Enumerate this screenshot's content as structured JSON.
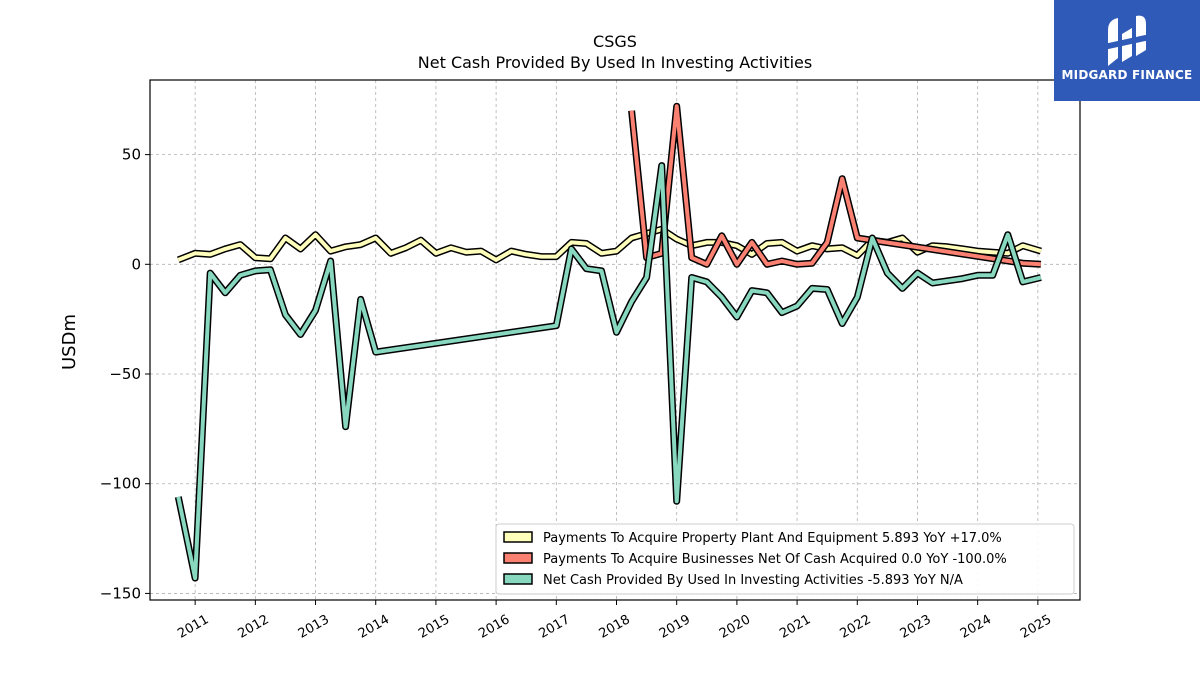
{
  "chart_data": {
    "type": "line",
    "title": "CSGS",
    "subtitle": "Net Cash Provided By Used In Investing Activities",
    "xlabel": "",
    "ylabel": "USDm",
    "xlim": [
      2010.25,
      2025.7
    ],
    "ylim": [
      -153,
      84
    ],
    "x_ticks": [
      "2011",
      "2012",
      "2013",
      "2014",
      "2015",
      "2016",
      "2017",
      "2018",
      "2019",
      "2020",
      "2021",
      "2022",
      "2023",
      "2024",
      "2025"
    ],
    "y_ticks": [
      50,
      0,
      -50,
      -100,
      -150
    ],
    "y_tick_labels": [
      "50",
      "0",
      "−50",
      "−100",
      "−150"
    ],
    "grid": true,
    "legend_position": "lower-right",
    "series": [
      {
        "name": "Payments To Acquire Property Plant And Equipment  5.893 YoY +17.0%",
        "color": "#ffffbb",
        "points": [
          [
            2010.72,
            2.0
          ],
          [
            2011.0,
            5.0
          ],
          [
            2011.25,
            4.5
          ],
          [
            2011.5,
            7.0
          ],
          [
            2011.75,
            9.0
          ],
          [
            2012.0,
            3.0
          ],
          [
            2012.25,
            2.5
          ],
          [
            2012.5,
            12.0
          ],
          [
            2012.75,
            7.0
          ],
          [
            2013.0,
            13.5
          ],
          [
            2013.25,
            6.0
          ],
          [
            2013.5,
            8.0
          ],
          [
            2013.75,
            9.0
          ],
          [
            2014.0,
            12.0
          ],
          [
            2014.25,
            5.0
          ],
          [
            2014.5,
            7.5
          ],
          [
            2014.75,
            11.0
          ],
          [
            2015.0,
            5.0
          ],
          [
            2015.25,
            7.5
          ],
          [
            2015.5,
            5.5
          ],
          [
            2015.75,
            6.0
          ],
          [
            2016.0,
            2.0
          ],
          [
            2016.25,
            6.0
          ],
          [
            2016.5,
            4.5
          ],
          [
            2016.75,
            3.5
          ],
          [
            2017.0,
            3.5
          ],
          [
            2017.25,
            10.0
          ],
          [
            2017.5,
            9.5
          ],
          [
            2017.75,
            5.0
          ],
          [
            2018.0,
            6.0
          ],
          [
            2018.25,
            12.0
          ],
          [
            2018.5,
            14.0
          ],
          [
            2018.75,
            16.0
          ],
          [
            2019.0,
            11.5
          ],
          [
            2019.25,
            8.5
          ],
          [
            2019.5,
            10.0
          ],
          [
            2019.75,
            10.0
          ],
          [
            2020.0,
            8.5
          ],
          [
            2020.25,
            4.5
          ],
          [
            2020.5,
            9.5
          ],
          [
            2020.75,
            10.0
          ],
          [
            2021.0,
            6.0
          ],
          [
            2021.25,
            8.5
          ],
          [
            2021.5,
            7.0
          ],
          [
            2021.75,
            7.5
          ],
          [
            2022.0,
            4.0
          ],
          [
            2022.25,
            11.0
          ],
          [
            2022.5,
            10.0
          ],
          [
            2022.75,
            12.0
          ],
          [
            2023.0,
            5.5
          ],
          [
            2023.25,
            8.5
          ],
          [
            2023.5,
            8.0
          ],
          [
            2023.75,
            7.0
          ],
          [
            2024.0,
            6.0
          ],
          [
            2024.25,
            5.5
          ],
          [
            2024.5,
            5.0
          ],
          [
            2024.75,
            8.5
          ],
          [
            2025.05,
            6.0
          ]
        ]
      },
      {
        "name": "Payments To Acquire Businesses Net Of Cash Acquired  0.0 YoY -100.0%",
        "color": "#fa8072",
        "points": [
          [
            2018.25,
            70.0
          ],
          [
            2018.5,
            3.0
          ],
          [
            2018.75,
            5.0
          ],
          [
            2019.0,
            72.0
          ],
          [
            2019.25,
            3.0
          ],
          [
            2019.5,
            0.0
          ],
          [
            2019.75,
            13.0
          ],
          [
            2020.0,
            0.0
          ],
          [
            2020.25,
            10.0
          ],
          [
            2020.5,
            0.0
          ],
          [
            2020.75,
            1.5
          ],
          [
            2021.0,
            0.0
          ],
          [
            2021.25,
            0.5
          ],
          [
            2021.5,
            10.0
          ],
          [
            2021.75,
            39.0
          ],
          [
            2022.0,
            12.0
          ],
          [
            2024.75,
            0.5
          ],
          [
            2025.05,
            0.0
          ]
        ]
      },
      {
        "name": "Net Cash Provided By Used In Investing Activities  -5.893 YoY N/A",
        "color": "#88d8c0",
        "points": [
          [
            2010.72,
            -106.0
          ],
          [
            2011.0,
            -143.0
          ],
          [
            2011.25,
            -4.0
          ],
          [
            2011.5,
            -13.0
          ],
          [
            2011.75,
            -5.0
          ],
          [
            2012.0,
            -3.0
          ],
          [
            2012.25,
            -2.5
          ],
          [
            2012.5,
            -23.0
          ],
          [
            2012.75,
            -32.0
          ],
          [
            2013.0,
            -21.0
          ],
          [
            2013.25,
            1.5
          ],
          [
            2013.5,
            -74.0
          ],
          [
            2013.75,
            -16.0
          ],
          [
            2014.0,
            -40.0
          ],
          [
            2017.0,
            -28.0
          ],
          [
            2017.25,
            7.0
          ],
          [
            2017.5,
            -2.0
          ],
          [
            2017.75,
            -3.0
          ],
          [
            2018.0,
            -31.0
          ],
          [
            2018.25,
            -17.0
          ],
          [
            2018.5,
            -6.0
          ],
          [
            2018.75,
            45.0
          ],
          [
            2019.0,
            -108.0
          ],
          [
            2019.25,
            -6.0
          ],
          [
            2019.5,
            -8.0
          ],
          [
            2019.75,
            -15.0
          ],
          [
            2020.0,
            -24.0
          ],
          [
            2020.25,
            -12.0
          ],
          [
            2020.5,
            -13.0
          ],
          [
            2020.75,
            -22.0
          ],
          [
            2021.0,
            -19.0
          ],
          [
            2021.25,
            -11.0
          ],
          [
            2021.5,
            -11.5
          ],
          [
            2021.75,
            -27.0
          ],
          [
            2022.0,
            -15.0
          ],
          [
            2022.25,
            12.0
          ],
          [
            2022.5,
            -4.0
          ],
          [
            2022.75,
            -11.0
          ],
          [
            2023.0,
            -4.0
          ],
          [
            2023.25,
            -8.5
          ],
          [
            2023.5,
            -7.5
          ],
          [
            2023.75,
            -6.5
          ],
          [
            2024.0,
            -5.0
          ],
          [
            2024.25,
            -5.0
          ],
          [
            2024.5,
            13.5
          ],
          [
            2024.75,
            -8.0
          ],
          [
            2025.05,
            -6.0
          ]
        ]
      }
    ]
  },
  "logo": {
    "text": "MIDGARD FINANCE",
    "background": "#2f5ab8"
  }
}
